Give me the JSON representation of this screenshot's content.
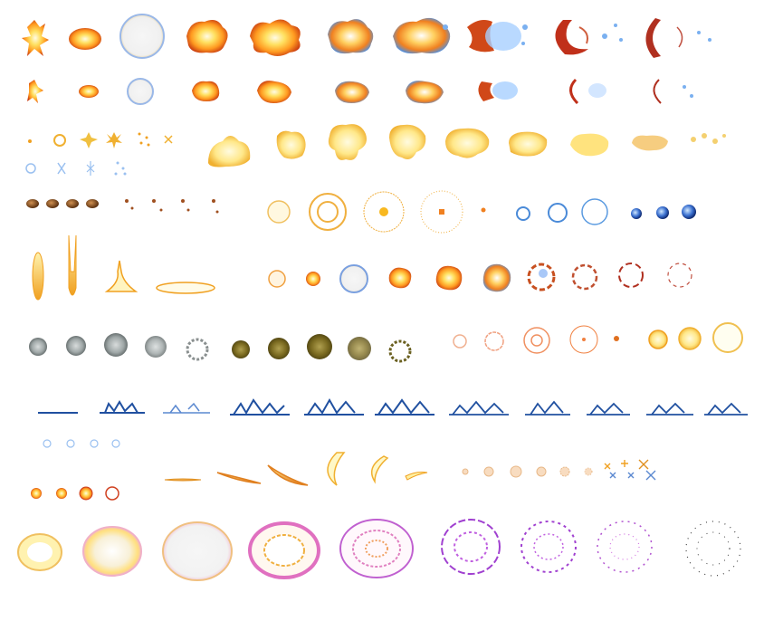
{
  "sheet": {
    "background": "#ffffff",
    "palette": {
      "fire_core": "#fff6c8",
      "fire_mid": "#ffb020",
      "fire_edge": "#d04010",
      "ice": "#3a7ad0",
      "ice_light": "#a8d0ff",
      "smoke_gray": "#8a9090",
      "smoke_olive": "#6a6020",
      "cream": "#f4c878",
      "pink": "#e070c0",
      "violet": "#a040d0",
      "water_blue": "#2050a0"
    }
  },
  "rows": [
    {
      "name": "fire-explosion-large-row",
      "frames": 10,
      "icon": "explosion-icon"
    },
    {
      "name": "fire-explosion-small-row",
      "frames": 10,
      "icon": "explosion-icon"
    },
    {
      "name": "sparks-and-cloud-burst-row",
      "frames": 17,
      "icon": "spark-icon"
    },
    {
      "name": "rocks-and-rings-row",
      "frames": 20,
      "icon": "ring-icon"
    },
    {
      "name": "beams-and-orange-burst-row",
      "frames": 14,
      "icon": "beam-icon"
    },
    {
      "name": "smoke-and-orange-rings-row",
      "frames": 17,
      "icon": "smoke-icon"
    },
    {
      "name": "water-splash-row",
      "frames": 15,
      "icon": "splash-icon"
    },
    {
      "name": "bubbles-slash-and-puffs-row",
      "frames": 20,
      "icon": "slash-icon"
    },
    {
      "name": "magic-portal-row",
      "frames": 9,
      "icon": "portal-icon"
    }
  ]
}
